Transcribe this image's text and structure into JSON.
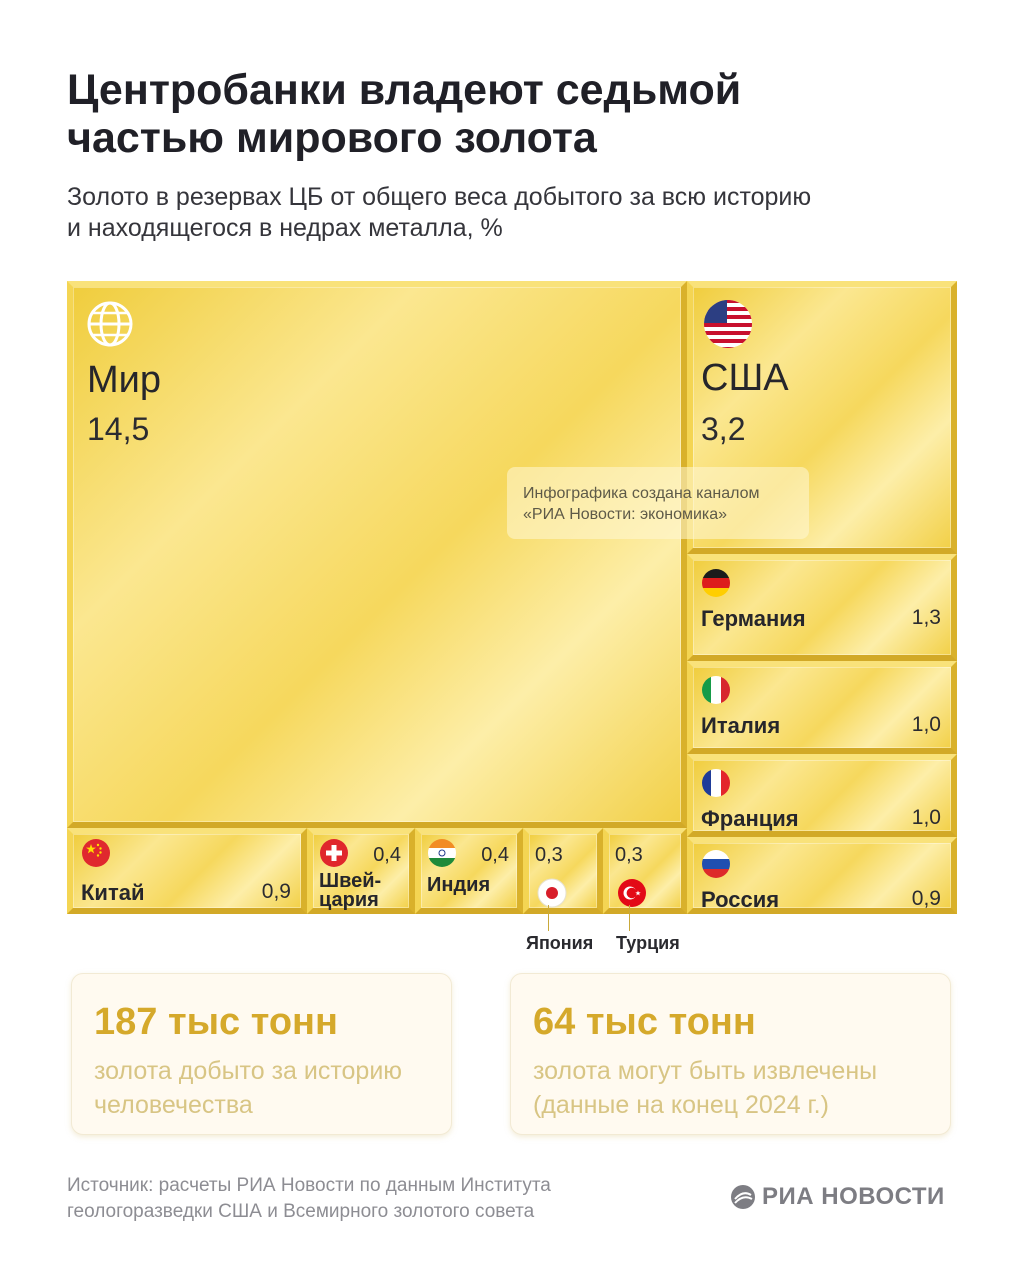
{
  "header": {
    "title_line1": "Центробанки владеют седьмой",
    "title_line2": "частью мирового золота",
    "subtitle_line1": "Золото в резервах ЦБ от общего веса добытого за всю историю",
    "subtitle_line2": "и находящегося в недрах металла, %"
  },
  "chart_data": {
    "type": "treemap",
    "unit": "%",
    "items": [
      {
        "name": "Мир",
        "value": 14.5,
        "label": "14,5",
        "icon": "globe-icon"
      },
      {
        "name": "США",
        "value": 3.2,
        "label": "3,2",
        "icon": "flag-usa-icon"
      },
      {
        "name": "Германия",
        "value": 1.3,
        "label": "1,3",
        "icon": "flag-germany-icon"
      },
      {
        "name": "Италия",
        "value": 1.0,
        "label": "1,0",
        "icon": "flag-italy-icon"
      },
      {
        "name": "Франция",
        "value": 1.0,
        "label": "1,0",
        "icon": "flag-france-icon"
      },
      {
        "name": "Россия",
        "value": 0.9,
        "label": "0,9",
        "icon": "flag-russia-icon"
      },
      {
        "name": "Китай",
        "value": 0.9,
        "label": "0,9",
        "icon": "flag-china-icon"
      },
      {
        "name": "Швей-",
        "name2": "цария",
        "value": 0.4,
        "label": "0,4",
        "icon": "flag-switzerland-icon"
      },
      {
        "name": "Индия",
        "value": 0.4,
        "label": "0,4",
        "icon": "flag-india-icon"
      },
      {
        "name": "Япония",
        "value": 0.3,
        "label": "0,3",
        "icon": "flag-japan-icon"
      },
      {
        "name": "Турция",
        "value": 0.3,
        "label": "0,3",
        "icon": "flag-turkey-icon"
      }
    ]
  },
  "watermark": {
    "line1": "Инфографика создана каналом",
    "line2": "«РИА Новости: экономика»"
  },
  "stats": [
    {
      "value": "187 тыс тонн",
      "line1": "золота добыто за историю",
      "line2": "человечества"
    },
    {
      "value": "64 тыс тонн",
      "line1": "золота могут быть извлечены",
      "line2": "(данные на конец 2024 г.)"
    }
  ],
  "footer": {
    "source_line1": "Источник: расчеты РИА Новости по данным Института",
    "source_line2": "геологоразведки США и Всемирного золотого совета",
    "brand": "РИА НОВОСТИ"
  },
  "colors": {
    "gold": "#ecc83a",
    "stat_accent": "#d5a92b"
  }
}
